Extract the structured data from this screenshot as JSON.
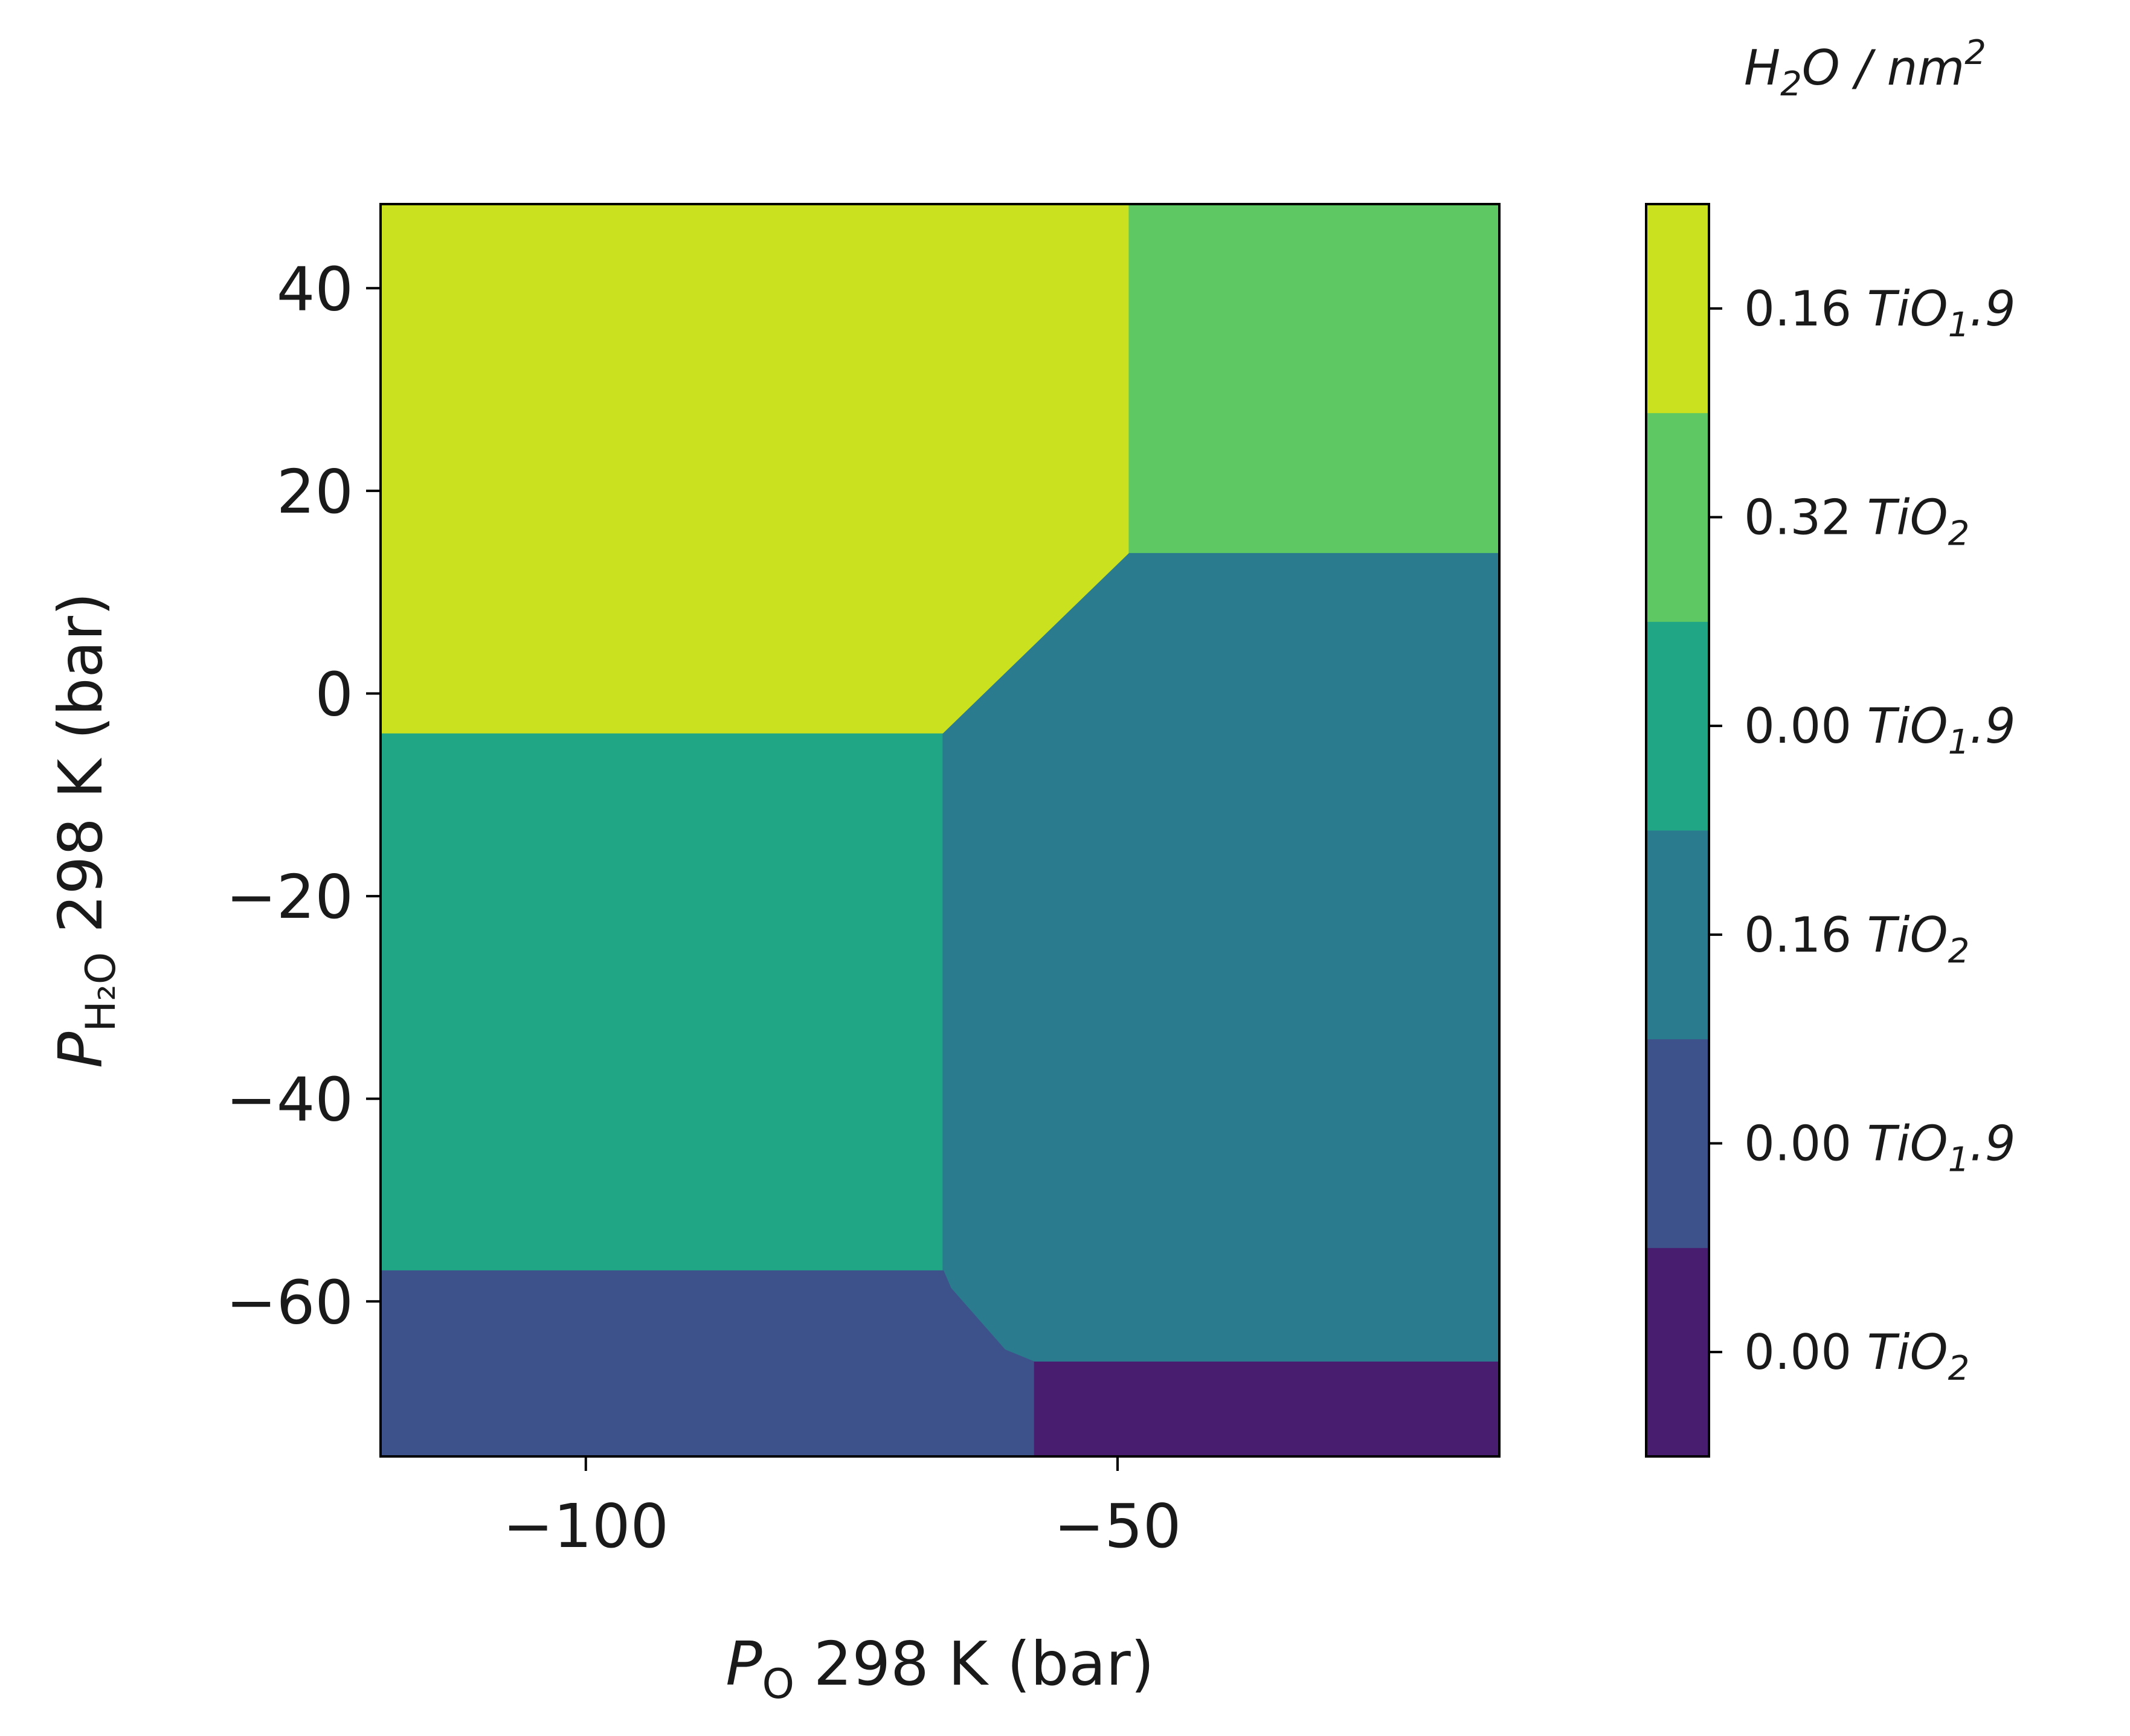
{
  "chart_data": {
    "type": "heatmap",
    "xlabel": {
      "sym": "P",
      "sub": "O",
      "rest": " 298 K (bar)"
    },
    "ylabel": {
      "sym": "P",
      "sub": "H₂O",
      "rest": " 298 K (bar)"
    },
    "xlim": [
      -119.3,
      -14.1
    ],
    "ylim": [
      -75.3,
      48.3
    ],
    "xticks": [
      -100,
      -50
    ],
    "yticks": [
      -60,
      -40,
      -20,
      0,
      20,
      40
    ],
    "regions": [
      {
        "phase": 5,
        "color": "#cae11f",
        "points": [
          [
            -119.3,
            48.3
          ],
          [
            -48.9,
            48.3
          ],
          [
            -48.9,
            13.8
          ],
          [
            -66.4,
            -4.0
          ],
          [
            -119.3,
            -4.0
          ]
        ]
      },
      {
        "phase": 4,
        "color": "#5ec962",
        "points": [
          [
            -48.9,
            48.3
          ],
          [
            -14.1,
            48.3
          ],
          [
            -14.1,
            13.8
          ],
          [
            -48.9,
            13.8
          ]
        ]
      },
      {
        "phase": 3,
        "color": "#21a685",
        "points": [
          [
            -119.3,
            -4.0
          ],
          [
            -66.4,
            -4.0
          ],
          [
            -66.4,
            -57.0
          ],
          [
            -119.3,
            -57.0
          ]
        ]
      },
      {
        "phase": 2,
        "color": "#2a7b8e",
        "points": [
          [
            -66.4,
            -4.0
          ],
          [
            -48.9,
            13.8
          ],
          [
            -14.1,
            13.8
          ],
          [
            -14.1,
            -66.0
          ],
          [
            -57.8,
            -66.0
          ],
          [
            -60.6,
            -64.8
          ],
          [
            -65.7,
            -58.7
          ],
          [
            -66.4,
            -57.0
          ]
        ]
      },
      {
        "phase": 1,
        "color": "#3d528a",
        "points": [
          [
            -119.3,
            -57.0
          ],
          [
            -66.4,
            -57.0
          ],
          [
            -65.7,
            -58.7
          ],
          [
            -60.6,
            -64.8
          ],
          [
            -57.8,
            -66.0
          ],
          [
            -57.8,
            -75.3
          ],
          [
            -119.3,
            -75.3
          ]
        ]
      },
      {
        "phase": 0,
        "color": "#481d6f",
        "points": [
          [
            -57.8,
            -66.0
          ],
          [
            -14.1,
            -66.0
          ],
          [
            -14.1,
            -75.3
          ],
          [
            -57.8,
            -75.3
          ]
        ]
      }
    ],
    "colorbar": {
      "title": {
        "base": "H",
        "sub": "2",
        "mid": "O / nm",
        "sup": "2"
      },
      "levels": [
        {
          "value": "0.00",
          "formula_base": "TiO",
          "formula_sub": "2",
          "formula_tail": "",
          "color": "#481d6f"
        },
        {
          "value": "0.00",
          "formula_base": "TiO",
          "formula_sub": "1",
          "formula_tail": ".9",
          "color": "#3d528a"
        },
        {
          "value": "0.16",
          "formula_base": "TiO",
          "formula_sub": "2",
          "formula_tail": "",
          "color": "#2a7b8e"
        },
        {
          "value": "0.00",
          "formula_base": "TiO",
          "formula_sub": "1",
          "formula_tail": ".9",
          "color": "#21a685"
        },
        {
          "value": "0.32",
          "formula_base": "TiO",
          "formula_sub": "2",
          "formula_tail": "",
          "color": "#5ec962"
        },
        {
          "value": "0.16",
          "formula_base": "TiO",
          "formula_sub": "1",
          "formula_tail": ".9",
          "color": "#cae11f"
        }
      ]
    }
  }
}
